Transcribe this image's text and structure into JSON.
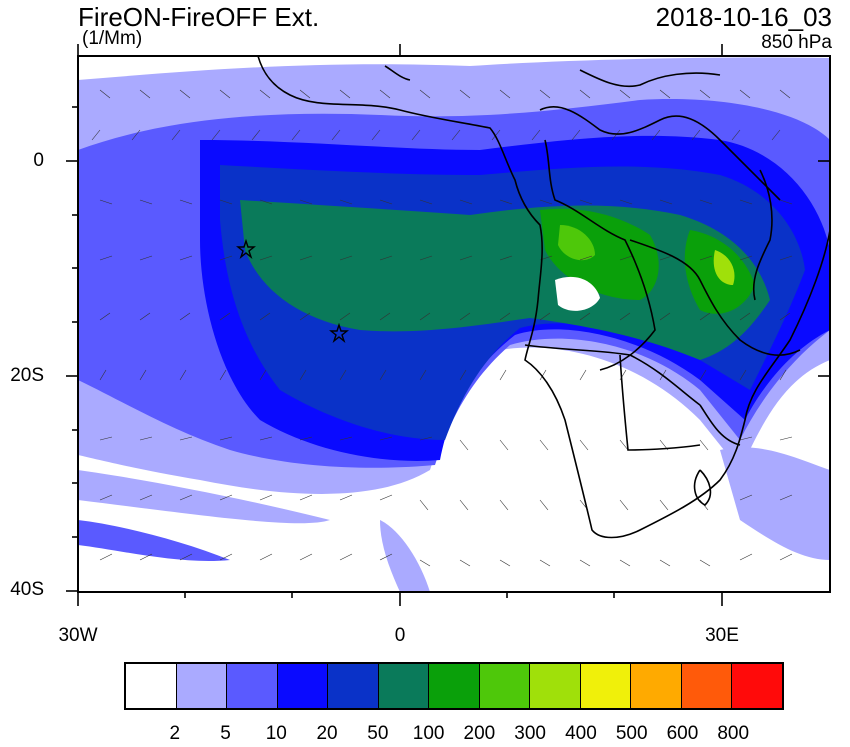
{
  "title": "FireON-FireOFF Ext.",
  "units": "(1/Mm)",
  "datetime": "2018-10-16_03",
  "level": "850 hPa",
  "y_ticks": [
    "0",
    "20S",
    "40S"
  ],
  "x_ticks": [
    "30W",
    "0",
    "30E"
  ],
  "colorbar": {
    "colors": [
      "#ffffff",
      "#aaaaff",
      "#5a5aff",
      "#0a0aff",
      "#0a32c8",
      "#0a7a5a",
      "#0aa00a",
      "#4ec80a",
      "#a0e00a",
      "#f0f00a",
      "#ffaa00",
      "#ff5a0a",
      "#ff0a0a"
    ],
    "labels": [
      "2",
      "5",
      "10",
      "20",
      "50",
      "100",
      "200",
      "300",
      "400",
      "500",
      "600",
      "800"
    ]
  },
  "markers": [
    "star",
    "star"
  ]
}
